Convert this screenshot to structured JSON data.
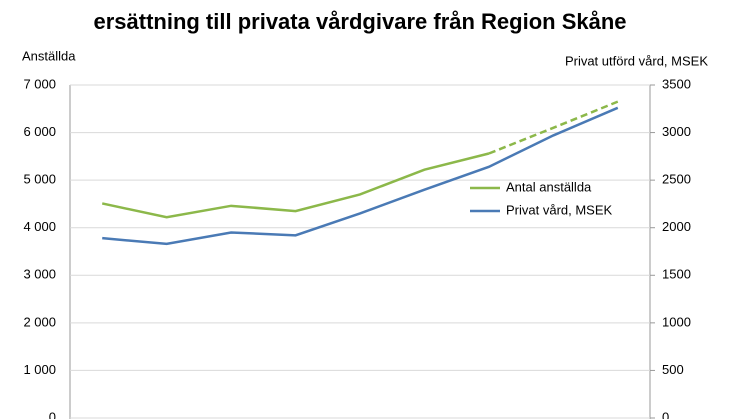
{
  "chart_data": {
    "type": "line",
    "title": "ersättning till privata vårdgivare från Region Skåne",
    "y_label": "Anställda",
    "y2_label": "Privat utförd vård, MSEK",
    "categories": [
      null,
      null,
      null,
      null,
      null,
      null,
      null,
      null,
      null
    ],
    "series": [
      {
        "name": "Antal anställda",
        "color": "#8cb84a",
        "values": [
          4510,
          4220,
          4460,
          4350,
          4700,
          5220,
          5560,
          6100,
          6650
        ],
        "dashed_from": 6
      },
      {
        "name": "Privat vård, MSEK",
        "color": "#4a7ab5",
        "axis": "y2",
        "values": [
          1890,
          1830,
          1950,
          1920,
          2150,
          2400,
          2640,
          2970,
          3260
        ]
      }
    ],
    "ylim": [
      0,
      7000
    ],
    "yticks": [
      {
        "value": 0,
        "label": "0"
      },
      {
        "value": 1000,
        "label": "1 000"
      },
      {
        "value": 2000,
        "label": "2 000"
      },
      {
        "value": 3000,
        "label": "3 000"
      },
      {
        "value": 4000,
        "label": "4 000"
      },
      {
        "value": 5000,
        "label": "5 000"
      },
      {
        "value": 6000,
        "label": "6 000"
      },
      {
        "value": 7000,
        "label": "7 000"
      }
    ],
    "y2lim": [
      0,
      3500
    ],
    "y2ticks": [
      0,
      500,
      1000,
      1500,
      2000,
      2500,
      3000,
      3500
    ],
    "grid": true
  }
}
